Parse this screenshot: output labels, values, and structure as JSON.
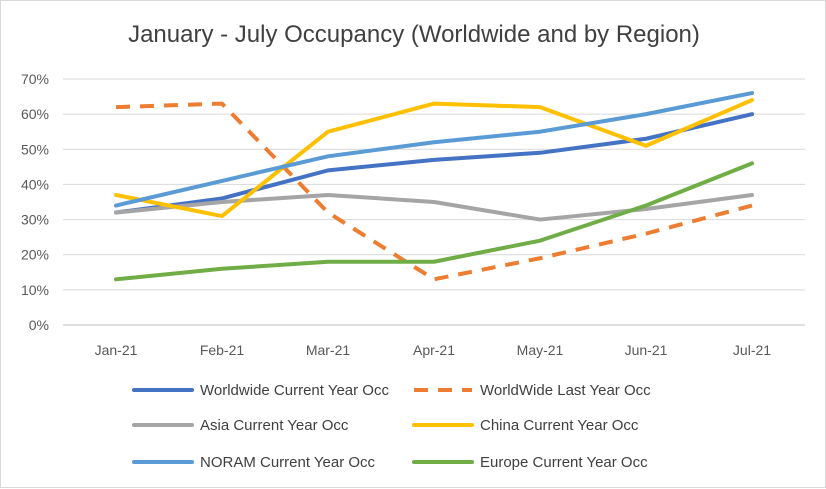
{
  "chart_data": {
    "type": "line",
    "title": "January - July Occupancy (Worldwide and by Region)",
    "xlabel": "",
    "ylabel": "",
    "categories": [
      "Jan-21",
      "Feb-21",
      "Mar-21",
      "Apr-21",
      "May-21",
      "Jun-21",
      "Jul-21"
    ],
    "y_ticks": [
      "0%",
      "10%",
      "20%",
      "30%",
      "40%",
      "50%",
      "60%",
      "70%"
    ],
    "ylim": [
      0,
      70
    ],
    "grid": true,
    "legend_position": "bottom",
    "series": [
      {
        "name": "Worldwide Current Year Occ",
        "color": "#4472c4",
        "dashed": false,
        "values": [
          32,
          36,
          44,
          47,
          49,
          53,
          60
        ]
      },
      {
        "name": "WorldWide Last Year Occ",
        "color": "#ed7d31",
        "dashed": true,
        "values": [
          62,
          63,
          32,
          13,
          19,
          26,
          34
        ]
      },
      {
        "name": "Asia Current Year Occ",
        "color": "#a5a5a5",
        "dashed": false,
        "values": [
          32,
          35,
          37,
          35,
          30,
          33,
          37
        ]
      },
      {
        "name": "China Current Year Occ",
        "color": "#ffc000",
        "dashed": false,
        "values": [
          37,
          31,
          55,
          63,
          62,
          51,
          64
        ]
      },
      {
        "name": "NORAM Current Year Occ",
        "color": "#5b9bd5",
        "dashed": false,
        "values": [
          34,
          41,
          48,
          52,
          55,
          60,
          66
        ]
      },
      {
        "name": "Europe Current Year Occ",
        "color": "#70ad47",
        "dashed": false,
        "values": [
          13,
          16,
          18,
          18,
          24,
          34,
          46
        ]
      }
    ]
  }
}
